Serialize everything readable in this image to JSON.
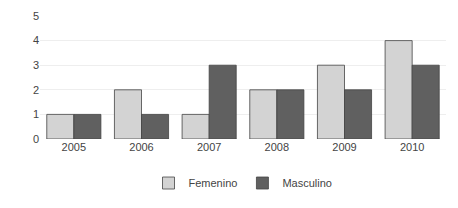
{
  "chart_data": {
    "type": "bar",
    "categories": [
      "2005",
      "2006",
      "2007",
      "2008",
      "2009",
      "2010"
    ],
    "series": [
      {
        "name": "Femenino",
        "color": "#d3d3d3",
        "values": [
          1,
          2,
          1,
          2,
          3,
          4
        ]
      },
      {
        "name": "Masculino",
        "color": "#606060",
        "values": [
          1,
          1,
          3,
          2,
          2,
          3
        ]
      }
    ],
    "ylim": [
      0,
      5
    ],
    "yticks": [
      0,
      1,
      2,
      3,
      4,
      5
    ],
    "grid": true,
    "legend": "bottom"
  }
}
